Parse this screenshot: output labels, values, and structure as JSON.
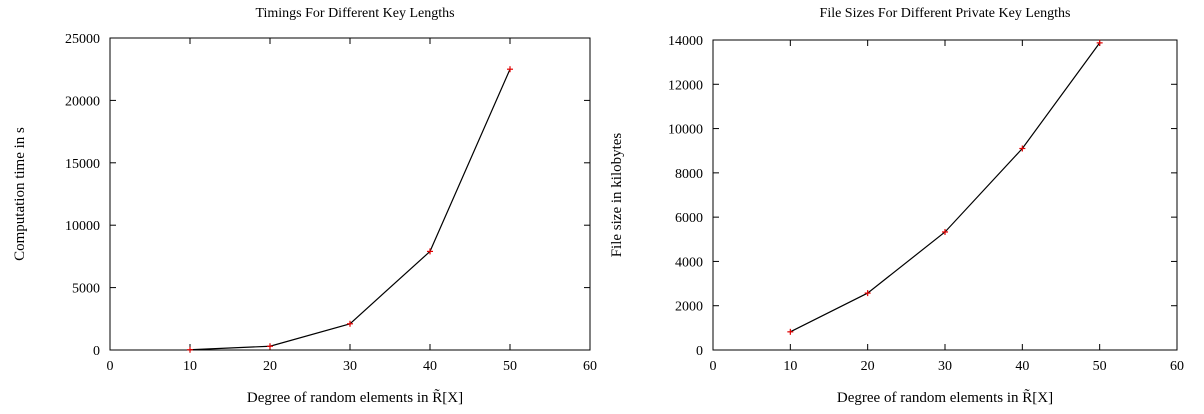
{
  "chart_data": [
    {
      "type": "line",
      "title": "Timings For Different Key Lengths",
      "xlabel": "Degree of random elements in R̃[X]",
      "ylabel": "Computation time in s",
      "xlim": [
        0,
        60
      ],
      "ylim": [
        0,
        25000
      ],
      "x_ticks": [
        "0",
        "10",
        "20",
        "30",
        "40",
        "50",
        "60"
      ],
      "y_ticks": [
        "0",
        "5000",
        "10000",
        "15000",
        "20000",
        "25000"
      ],
      "grid": false,
      "series_color": "#000000",
      "marker_color": "#e00000",
      "series": [
        {
          "x": [
            10,
            20,
            30,
            40,
            50
          ],
          "values": [
            20,
            300,
            2100,
            7900,
            22500
          ]
        }
      ]
    },
    {
      "type": "line",
      "title": "File Sizes For Different Private Key Lengths",
      "xlabel": "Degree of random elements in R̃[X]",
      "ylabel": "File size in kilobytes",
      "xlim": [
        0,
        60
      ],
      "ylim": [
        0,
        14000
      ],
      "x_ticks": [
        "0",
        "10",
        "20",
        "30",
        "40",
        "50",
        "60"
      ],
      "y_ticks": [
        "0",
        "2000",
        "4000",
        "6000",
        "8000",
        "10000",
        "12000",
        "14000"
      ],
      "grid": false,
      "series_color": "#000000",
      "marker_color": "#e00000",
      "series": [
        {
          "x": [
            10,
            20,
            30,
            40,
            50
          ],
          "values": [
            820,
            2570,
            5330,
            9100,
            13870
          ]
        }
      ]
    }
  ]
}
